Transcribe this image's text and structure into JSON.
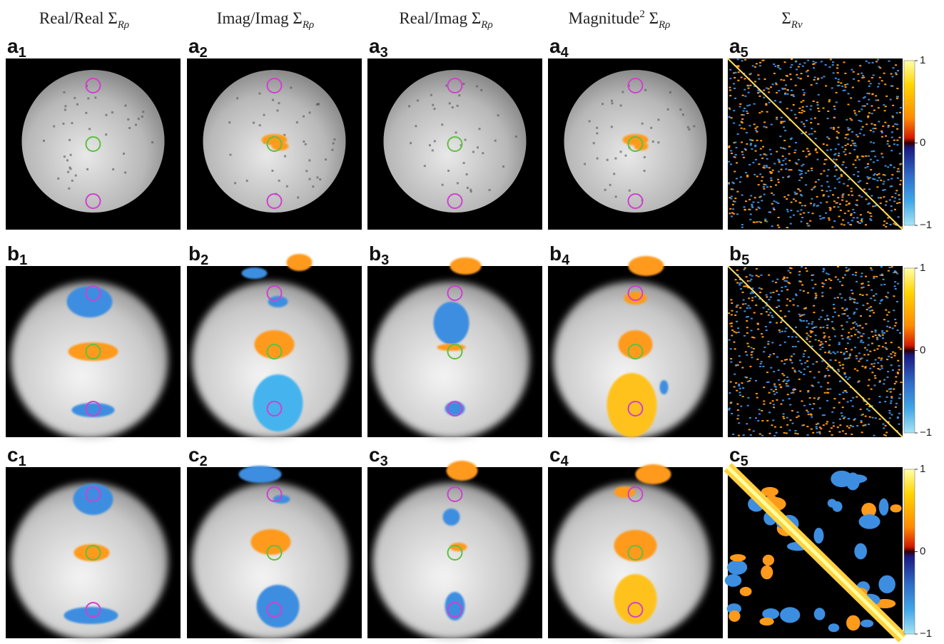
{
  "headers": [
    {
      "main": "Real/Real Σ",
      "sub": "Rρ"
    },
    {
      "main": "Imag/Imag Σ",
      "sub": "Rρ"
    },
    {
      "main": "Real/Imag Σ",
      "sub": "Rρ"
    },
    {
      "main": "Magnitude",
      "sup": "2",
      "main2": " Σ",
      "sub": "Rρ"
    },
    {
      "main": "Σ",
      "sub": "Rν"
    }
  ],
  "rows": [
    {
      "panels": [
        {
          "letter": "a",
          "index": "1"
        },
        {
          "letter": "a",
          "index": "2"
        },
        {
          "letter": "a",
          "index": "3"
        },
        {
          "letter": "a",
          "index": "4"
        },
        {
          "letter": "a",
          "index": "5"
        }
      ]
    },
    {
      "panels": [
        {
          "letter": "b",
          "index": "1"
        },
        {
          "letter": "b",
          "index": "2"
        },
        {
          "letter": "b",
          "index": "3"
        },
        {
          "letter": "b",
          "index": "4"
        },
        {
          "letter": "b",
          "index": "5"
        }
      ]
    },
    {
      "panels": [
        {
          "letter": "c",
          "index": "1"
        },
        {
          "letter": "c",
          "index": "2"
        },
        {
          "letter": "c",
          "index": "3"
        },
        {
          "letter": "c",
          "index": "4"
        },
        {
          "letter": "c",
          "index": "5"
        }
      ]
    }
  ],
  "colorbar": {
    "ticks": [
      1,
      0,
      {
        "value": -1,
        "label": "−1"
      }
    ],
    "range": [
      -1,
      1
    ]
  }
}
